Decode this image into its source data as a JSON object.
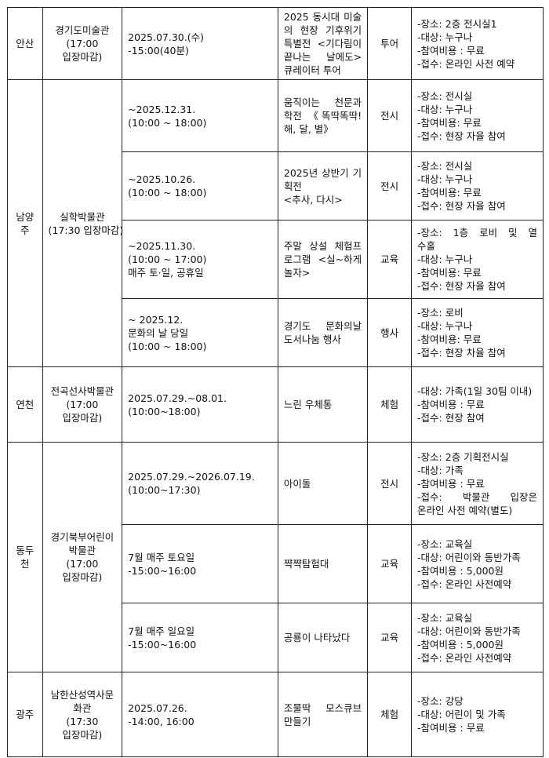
{
  "table": {
    "groups": [
      {
        "region": "안산",
        "venue": [
          "경기도미술관",
          "(17:00",
          "입장마감)"
        ],
        "rows": [
          {
            "date": [
              "2025.07.30.(수)",
              "-15:00(40분)"
            ],
            "program": [
              "2025 동시대 미술",
              "의 현장 기후위기",
              "특별전 <기다림이",
              "끝나는 날에도>",
              "큐레이터 투어"
            ],
            "type": "투어",
            "details": [
              "-장소: 2층 전시실1",
              "-대상: 누구나",
              "-참여비용 : 무료",
              "-접수: 온라인 사전 예약"
            ]
          }
        ]
      },
      {
        "region": "남양주",
        "venue": [
          "실학박물관",
          "(17:30 입장마감)"
        ],
        "rows": [
          {
            "date": [
              "~2025.12.31.",
              "(10:00 ~ 18:00)"
            ],
            "program": [
              "움직이는 천문과",
              "학전 《똑딱똑딱!",
              "해, 달, 별》"
            ],
            "type": "전시",
            "details": [
              "-장소: 전시실",
              "-대상: 누구나",
              "-참여비용: 무료",
              "-접수: 현장 자율 참여"
            ]
          },
          {
            "date": [
              "~2025.10.26.",
              "(10:00 ~ 18:00)"
            ],
            "program": [
              "2025년 상반기 기",
              "획전",
              "<추사, 다시>"
            ],
            "type": "전시",
            "details": [
              "-장소: 전시실",
              "-대상: 누구나",
              "-참여비용: 무료",
              "-접수: 현장 자율 참여"
            ]
          },
          {
            "date": [
              "~2025.11.30.",
              "(10:00 ~ 17:00)",
              "매주 토·일, 공휴일"
            ],
            "program": [
              "주말 상설 체험프",
              "로그램 <실~하게",
              "놀자>"
            ],
            "type": "교육",
            "details": [
              "-장소: 1층 로비 및 열",
              "수홀",
              "-대상: 누구나",
              "-참여비용: 무료",
              "-접수: 현장 자율 참여"
            ]
          },
          {
            "date": [
              "~ 2025.12.",
              "문화의 날 당일",
              "(10:00 ~ 18:00)"
            ],
            "program": [
              "경기도 문화의날",
              "도서나눔 행사"
            ],
            "type": "행사",
            "details": [
              "-장소: 로비",
              "-대상: 누구나",
              "-참여비용: 무료",
              "-접수: 현장 차율 참여"
            ]
          }
        ]
      },
      {
        "region": "연천",
        "venue": [
          "전곡선사박물관",
          "(17:00",
          "입장마감)"
        ],
        "rows": [
          {
            "date": [
              "2025.07.29.~08.01.",
              "(10:00~18:00)"
            ],
            "program": [
              "느린 우체통"
            ],
            "type": "체험",
            "details": [
              "-대상: 가족(1일 30팀 이내)",
              "-참여비용 : 무료",
              "-접수: 현장 참여"
            ]
          }
        ]
      },
      {
        "region": "동두천",
        "venue": [
          "경기북부어린이",
          "박물관",
          "(17:00",
          "입장마감)"
        ],
        "rows": [
          {
            "date": [
              "2025.07.29.~2026.07.19.",
              "(10:00~17:30)"
            ],
            "program": [
              "아이돌"
            ],
            "type": "전시",
            "details": [
              "-장소: 2층 기획전시실",
              "-대상: 가족",
              "-참여비용 : 무료",
              "-접수: 박물관 입장은",
              "온라인 사전 예약(별도)"
            ]
          },
          {
            "date": [
              "7월 매주 토요일",
              "-15:00~16:00"
            ],
            "program": [
              "쨕쨕탐험대"
            ],
            "type": "교육",
            "details": [
              "-장소: 교육실",
              "-대상: 어린이와 동반가족",
              "-참여비용 : 5,000원",
              "-접수: 온라인 사전예약"
            ]
          },
          {
            "date": [
              "7월 매주 일요일",
              "-15:00~16:00"
            ],
            "program": [
              "공룡이 나타났다"
            ],
            "type": "교육",
            "details": [
              "-장소: 교육실",
              "-대상: 어린이와 동반가족",
              "-참여비용 : 5,000원",
              "-접수: 온라인 사전예약"
            ]
          }
        ]
      },
      {
        "region": "광주",
        "venue": [
          "남한산성역사문",
          "화관",
          "(17:30",
          "입장마감)"
        ],
        "rows": [
          {
            "date": [
              "2025.07.26.",
              "-14:00, 16:00"
            ],
            "program": [
              "조물딱 모스큐브",
              "만들기"
            ],
            "type": "체험",
            "details": [
              "-장소: 강당",
              "-대상: 어린이 및 가족",
              "-참여비용 : 무료"
            ]
          }
        ]
      }
    ]
  }
}
